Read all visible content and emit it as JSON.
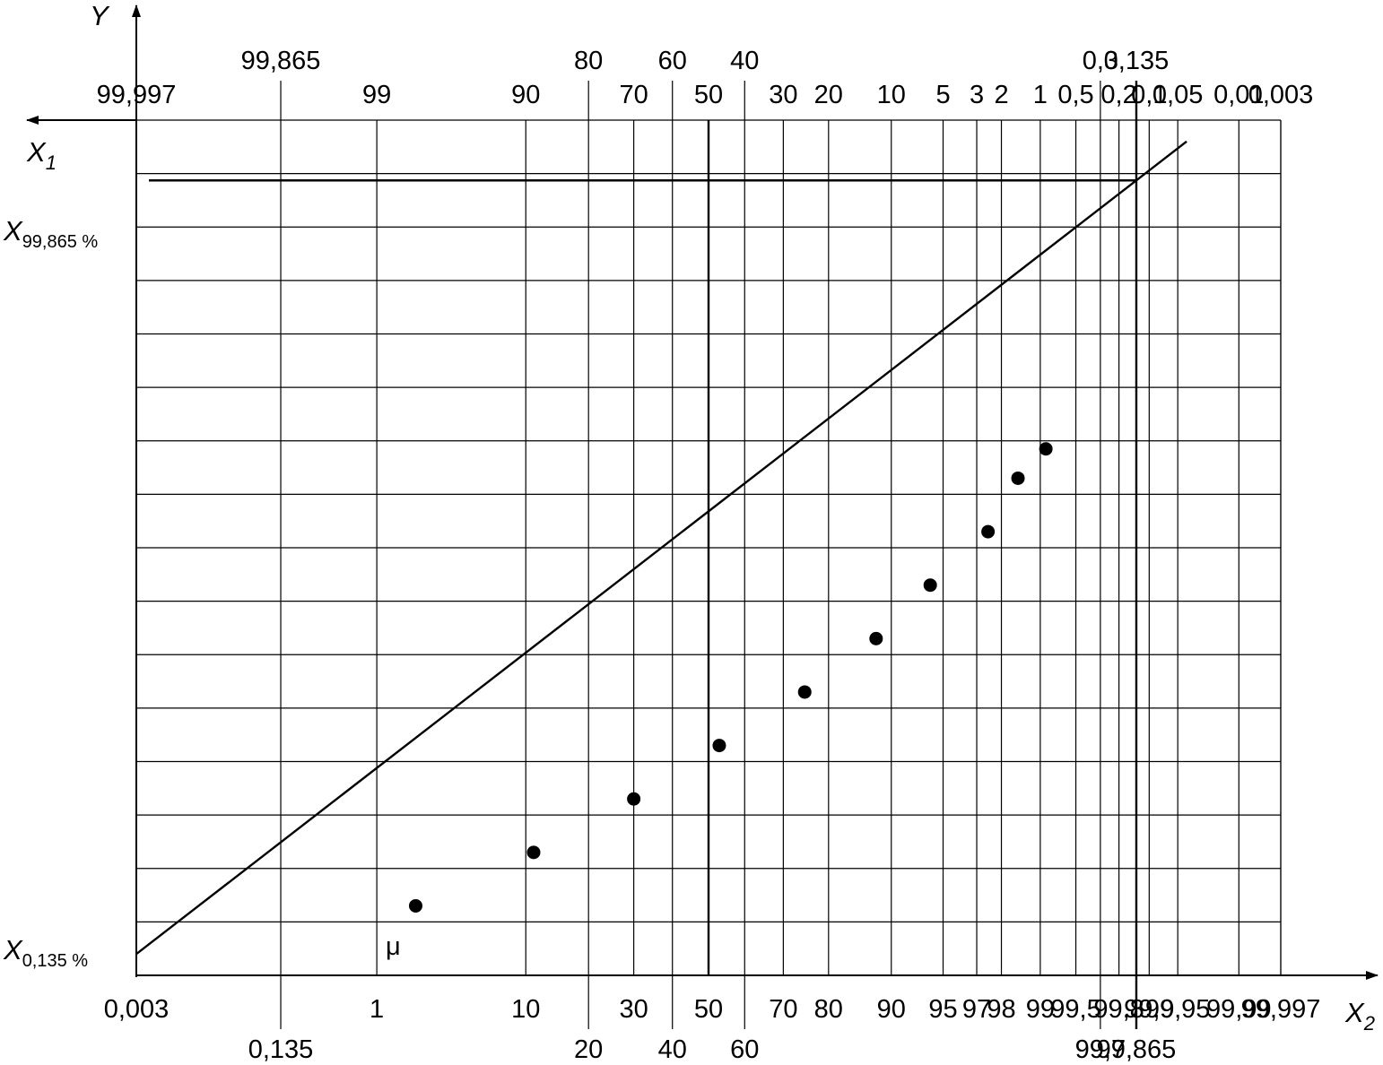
{
  "chart_data": {
    "type": "scatter",
    "scale": "normal probability",
    "grid": true,
    "axes": {
      "y_label": "Y",
      "x1_label": "X",
      "x1_subscript": "1",
      "x2_label": "X",
      "x2_subscript": "2",
      "mu_label": "μ",
      "x_upper_label": "X",
      "x_upper_subscript": "99,865 %",
      "x_lower_label": "X",
      "x_lower_subscript": "0,135 %"
    },
    "bottom_ticks_row1": [
      "0,003",
      "1",
      "10",
      "30",
      "50",
      "70",
      "80",
      "90",
      "95",
      "97",
      "98",
      "99",
      "99,5",
      "99,8",
      "99,9",
      "99,95",
      "99,99",
      "99,997"
    ],
    "bottom_ticks_row2": [
      "0,135",
      "20",
      "40",
      "60",
      "99,7",
      "99,865"
    ],
    "top_ticks_row1": [
      "99,997",
      "99",
      "90",
      "70",
      "50",
      "30",
      "20",
      "10",
      "5",
      "3",
      "2",
      "1",
      "0,5",
      "0,2",
      "0,1",
      "0,05",
      "0,01",
      "0,003"
    ],
    "top_ticks_row2": [
      "99,865",
      "80",
      "60",
      "40",
      "0,3",
      "0,135"
    ],
    "points": [
      {
        "x": 2.0,
        "y": 1.3
      },
      {
        "x": 11.0,
        "y": 2.3
      },
      {
        "x": 30.0,
        "y": 3.3
      },
      {
        "x": 53.0,
        "y": 4.3
      },
      {
        "x": 75.0,
        "y": 5.3
      },
      {
        "x": 88.0,
        "y": 6.3
      },
      {
        "x": 94.0,
        "y": 7.3
      },
      {
        "x": 97.5,
        "y": 8.3
      },
      {
        "x": 98.5,
        "y": 9.3
      },
      {
        "x": 99.1,
        "y": 9.85
      }
    ],
    "fit_line": [
      {
        "x": 0.003,
        "y": 0.4
      },
      {
        "x": 99.96,
        "y": 15.6
      }
    ],
    "mu": 50,
    "x_lower_pct": 0.135,
    "x_upper_pct": 99.865,
    "y_range": [
      0,
      16
    ]
  }
}
